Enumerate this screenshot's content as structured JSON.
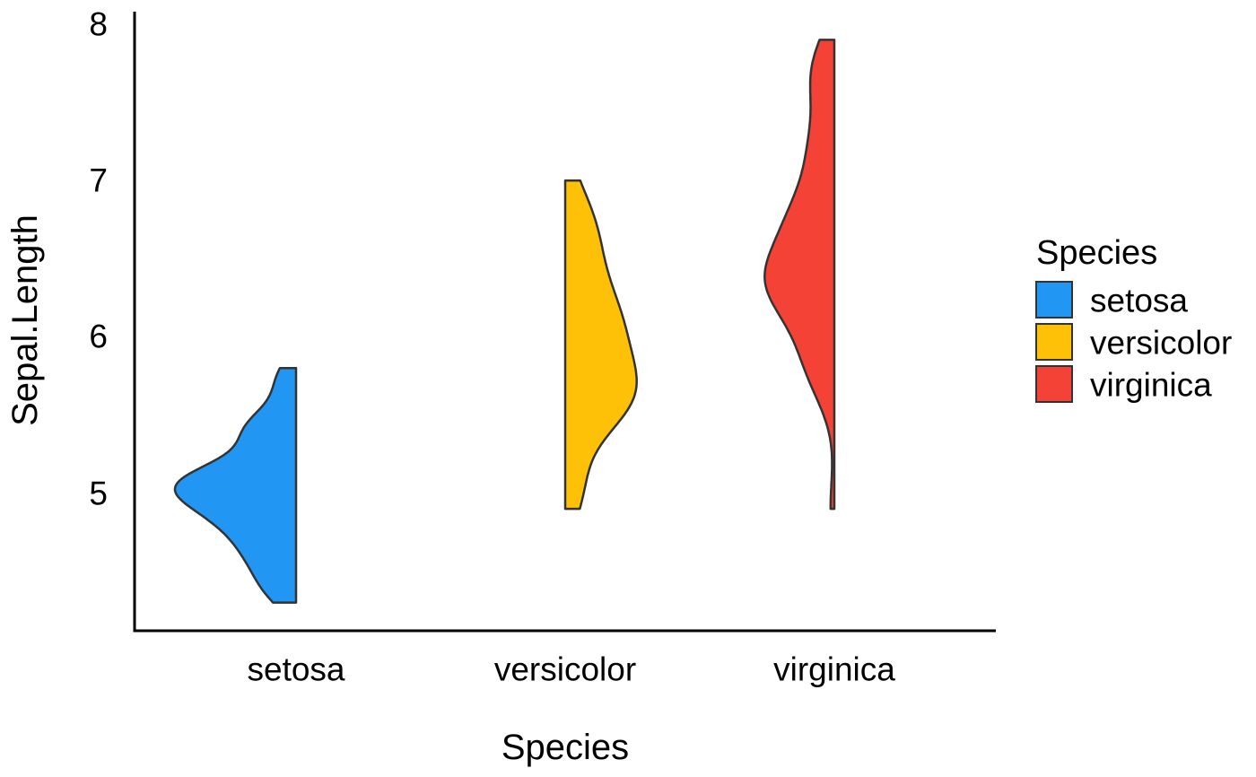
{
  "figure": {
    "background": "#ffffff",
    "text_color": "#000000",
    "axis_line_color": "#000000",
    "violin_outline_color": "#333333"
  },
  "chart_data": {
    "type": "violin",
    "variant": "half-violin, gaussian kernel density, trimmed to data range",
    "title": "",
    "xlabel": "Species",
    "ylabel": "Sepal.Length",
    "categories": [
      "setosa",
      "versicolor",
      "virginica"
    ],
    "y_ticks": [
      5,
      6,
      7,
      8
    ],
    "y_axis_range": [
      4.12,
      8.08
    ],
    "grid": false,
    "kde": {
      "kernel": "gaussian",
      "bandwidth_rule": "nrd0",
      "trim": true,
      "scale": "area"
    },
    "legend": {
      "position": "right",
      "title": "Species",
      "entries": [
        {
          "label": "setosa",
          "color": "#2196F3"
        },
        {
          "label": "versicolor",
          "color": "#FFC107"
        },
        {
          "label": "virginica",
          "color": "#F44336"
        }
      ]
    },
    "series": [
      {
        "name": "setosa",
        "fill": "#2196F3",
        "side": "left",
        "values": [
          5.1,
          4.9,
          4.7,
          4.6,
          5.0,
          5.4,
          4.6,
          5.0,
          4.4,
          4.9,
          5.4,
          4.8,
          4.8,
          4.3,
          5.8,
          5.7,
          5.4,
          5.1,
          5.7,
          5.1,
          5.4,
          5.1,
          4.6,
          5.1,
          4.8,
          5.0,
          5.0,
          5.2,
          5.2,
          4.7,
          4.8,
          5.4,
          5.2,
          5.5,
          4.9,
          5.0,
          5.5,
          4.9,
          4.4,
          5.1,
          5.0,
          4.5,
          4.4,
          5.0,
          5.1,
          4.8,
          5.1,
          4.6,
          5.3,
          5.0
        ]
      },
      {
        "name": "versicolor",
        "fill": "#FFC107",
        "side": "right",
        "values": [
          7.0,
          6.4,
          6.9,
          5.5,
          6.5,
          5.7,
          6.3,
          4.9,
          6.6,
          5.2,
          5.0,
          5.9,
          6.0,
          6.1,
          5.6,
          6.7,
          5.6,
          5.8,
          6.2,
          5.6,
          5.9,
          6.1,
          6.3,
          6.1,
          6.4,
          6.6,
          6.8,
          6.7,
          6.0,
          5.7,
          5.5,
          5.5,
          5.8,
          6.0,
          5.4,
          6.0,
          6.7,
          6.3,
          5.6,
          5.5,
          5.5,
          6.1,
          5.8,
          5.0,
          5.6,
          5.7,
          5.7,
          6.2,
          5.1,
          5.7
        ]
      },
      {
        "name": "virginica",
        "fill": "#F44336",
        "side": "left",
        "values": [
          6.3,
          5.8,
          7.1,
          6.3,
          6.5,
          7.6,
          4.9,
          7.3,
          6.7,
          7.2,
          6.5,
          6.4,
          6.8,
          5.7,
          5.8,
          6.4,
          6.5,
          7.7,
          7.7,
          6.0,
          6.9,
          5.6,
          7.7,
          6.3,
          6.7,
          7.2,
          6.2,
          6.1,
          6.4,
          7.2,
          7.4,
          7.9,
          6.4,
          6.3,
          6.1,
          7.7,
          6.3,
          6.4,
          6.0,
          6.9,
          6.7,
          6.9,
          5.8,
          6.8,
          6.7,
          6.7,
          6.3,
          6.5,
          6.2,
          5.9
        ]
      }
    ]
  }
}
